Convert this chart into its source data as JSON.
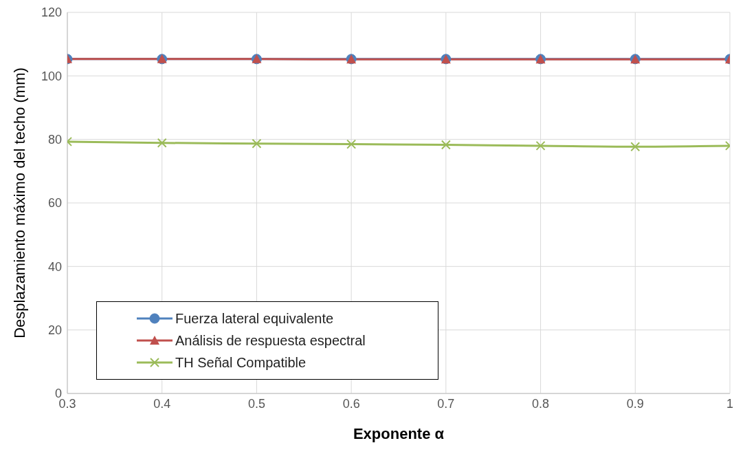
{
  "chart_data": {
    "type": "line",
    "xlabel": "Exponente α",
    "ylabel": "Desplazamiento máximo del techo (mm)",
    "x": [
      0.3,
      0.4,
      0.5,
      0.6,
      0.7,
      0.8,
      0.9,
      1
    ],
    "series": [
      {
        "name": "Fuerza lateral equivalente",
        "color": "#4f81bd",
        "marker": "circle",
        "values": [
          105.3,
          105.3,
          105.3,
          105.3,
          105.3,
          105.3,
          105.3,
          105.3
        ]
      },
      {
        "name": "Análisis de respuesta espectral",
        "color": "#c0504d",
        "marker": "triangle",
        "values": [
          105.3,
          105.3,
          105.3,
          105.2,
          105.2,
          105.2,
          105.2,
          105.2
        ]
      },
      {
        "name": "TH Señal Compatible",
        "color": "#9bbb59",
        "marker": "cross",
        "values": [
          79.3,
          78.9,
          78.7,
          78.5,
          78.3,
          78.0,
          77.7,
          78.0
        ]
      }
    ],
    "xlim": [
      0.3,
      1
    ],
    "xticks": [
      0.3,
      0.4,
      0.5,
      0.6,
      0.7,
      0.8,
      0.9,
      1
    ],
    "ylim": [
      0,
      120
    ],
    "yticks": [
      0,
      20,
      40,
      60,
      80,
      100,
      120
    ],
    "grid": true,
    "legend": "bottom left"
  }
}
